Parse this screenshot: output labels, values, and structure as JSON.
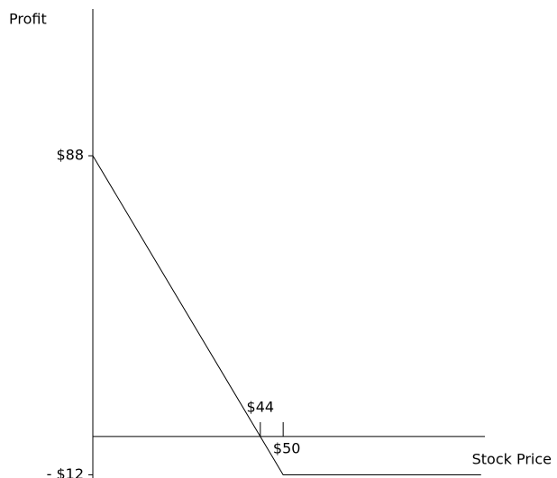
{
  "chart_data": {
    "type": "line",
    "y_label": "Profit",
    "x_label": "Stock Price",
    "x": [
      0,
      50,
      102
    ],
    "series": [
      {
        "color": "#000000",
        "values": [
          88,
          -12,
          -12
        ]
      }
    ],
    "xlim": [
      0,
      103
    ],
    "ylim": [
      -13,
      134
    ],
    "xticks": [
      {
        "value": 44,
        "label": "$44"
      },
      {
        "value": 50,
        "label": "$50"
      }
    ],
    "yticks": [
      {
        "value": 88,
        "label": "$88"
      },
      {
        "value": -12,
        "label": "- $12"
      }
    ]
  }
}
